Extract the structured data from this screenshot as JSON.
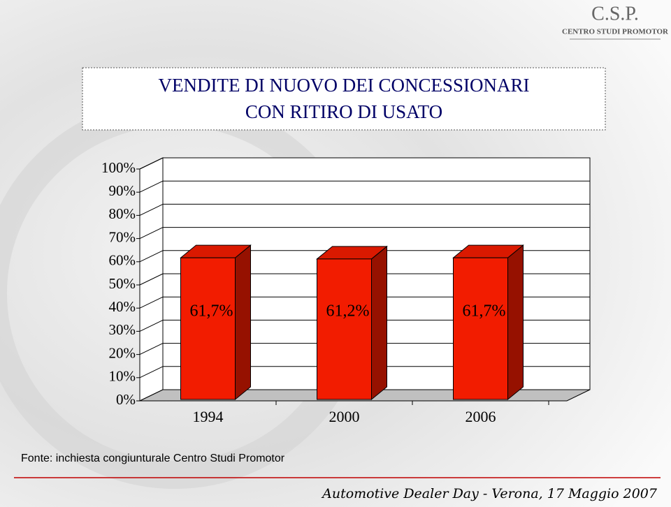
{
  "logo": {
    "name": "C.S.P.",
    "subtitle": "CENTRO STUDI PROMOTOR"
  },
  "chart_data": {
    "type": "bar3d",
    "title": [
      "VENDITE DI NUOVO DEI CONCESSIONARI",
      "CON RITIRO DI USATO"
    ],
    "categories": [
      "1994",
      "2000",
      "2006"
    ],
    "values": [
      61.7,
      61.2,
      61.7
    ],
    "value_labels": [
      "61,7%",
      "61,2%",
      "61,7%"
    ],
    "color": "#f21c00",
    "ylim": [
      0,
      100
    ],
    "yticks": [
      {
        "value": 0,
        "label": "0%"
      },
      {
        "value": 10,
        "label": "10%"
      },
      {
        "value": 20,
        "label": "20%"
      },
      {
        "value": 30,
        "label": "30%"
      },
      {
        "value": 40,
        "label": "40%"
      },
      {
        "value": 50,
        "label": "50%"
      },
      {
        "value": 60,
        "label": "60%"
      },
      {
        "value": 70,
        "label": "70%"
      },
      {
        "value": 80,
        "label": "80%"
      },
      {
        "value": 90,
        "label": "90%"
      },
      {
        "value": 100,
        "label": "100%"
      }
    ],
    "grid": true,
    "source": "Fonte: inchiesta congiunturale Centro Studi Promotor"
  },
  "footer": "Automotive Dealer Day - Verona, 17 Maggio 2007"
}
